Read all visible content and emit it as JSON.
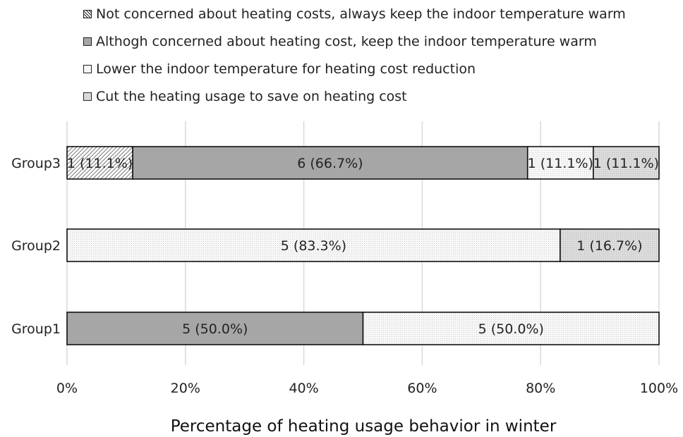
{
  "chart_data": {
    "type": "bar",
    "orientation": "horizontal",
    "stacked": true,
    "normalized": true,
    "categories": [
      "Group3",
      "Group2",
      "Group1"
    ],
    "series": [
      {
        "name": "Not concerned about heating costs, always keep the indoor temperature warm",
        "fill": "#d8d8d8",
        "pattern": "diagonal-hatch",
        "values": [
          11.1,
          0,
          0
        ],
        "labels": [
          "1 (11.1%)",
          "",
          ""
        ]
      },
      {
        "name": "Althogh concerned about heating cost, keep the indoor temperature warm",
        "fill": "#a6a6a6",
        "pattern": "solid",
        "values": [
          66.7,
          0,
          50.0
        ],
        "labels": [
          "6 (66.7%)",
          "",
          "5 (50.0%)"
        ]
      },
      {
        "name": "Lower the indoor temperature for heating cost reduction",
        "fill": "#f2f2f2",
        "pattern": "fine-dots",
        "values": [
          11.1,
          83.3,
          50.0
        ],
        "labels": [
          "1 (11.1%)",
          "5 (83.3%)",
          "5 (50.0%)"
        ]
      },
      {
        "name": "Cut the heating usage to save on heating cost",
        "fill": "#d9d9d9",
        "pattern": "light-dots",
        "values": [
          11.1,
          16.7,
          0
        ],
        "labels": [
          "1 (11.1%)",
          "1 (16.7%)",
          ""
        ]
      }
    ],
    "xlim": [
      0,
      100
    ],
    "xticks": [
      0,
      20,
      40,
      60,
      80,
      100
    ],
    "xtick_labels": [
      "0%",
      "20%",
      "40%",
      "60%",
      "80%",
      "100%"
    ],
    "xlabel": "Percentage of heating usage behavior in winter",
    "ylabel": "",
    "title": "",
    "grid": "vertical",
    "legend_position": "top"
  }
}
